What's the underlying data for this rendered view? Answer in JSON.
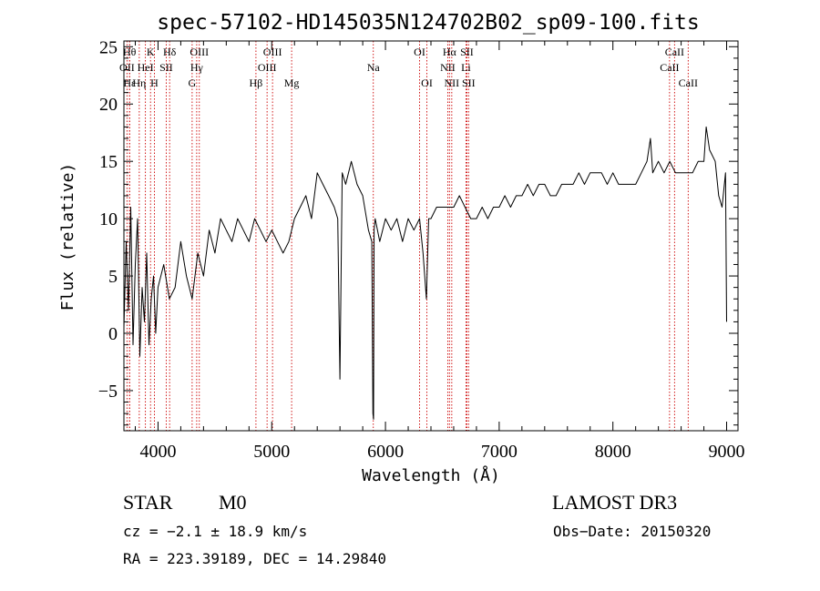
{
  "chart_data": {
    "type": "line",
    "title": "spec-57102-HD145035N124702B02_sp09-100.fits",
    "xlabel": "Wavelength (Å)",
    "ylabel": "Flux (relative)",
    "xlim": [
      3700,
      9100
    ],
    "ylim": [
      -8.5,
      25.5
    ],
    "xticks": [
      4000,
      5000,
      6000,
      7000,
      8000,
      9000
    ],
    "yticks": [
      -5,
      0,
      5,
      10,
      15,
      20,
      25
    ],
    "grid": false,
    "series": [
      {
        "x": [
          3700,
          3720,
          3740,
          3760,
          3780,
          3800,
          3820,
          3840,
          3860,
          3880,
          3900,
          3920,
          3940,
          3960,
          3980,
          4000,
          4050,
          4100,
          4150,
          4200,
          4250,
          4300,
          4350,
          4400,
          4450,
          4500,
          4550,
          4600,
          4650,
          4700,
          4750,
          4800,
          4850,
          4900,
          4950,
          5000,
          5050,
          5100,
          5150,
          5200,
          5250,
          5300,
          5350,
          5400,
          5450,
          5500,
          5550,
          5580,
          5600,
          5620,
          5650,
          5700,
          5750,
          5800,
          5850,
          5880,
          5890,
          5895,
          5900,
          5910,
          5950,
          6000,
          6050,
          6100,
          6150,
          6200,
          6250,
          6300,
          6330,
          6360,
          6380,
          6400,
          6450,
          6500,
          6550,
          6600,
          6650,
          6700,
          6750,
          6800,
          6850,
          6900,
          6950,
          7000,
          7050,
          7100,
          7150,
          7200,
          7250,
          7300,
          7350,
          7400,
          7450,
          7500,
          7550,
          7600,
          7650,
          7700,
          7750,
          7800,
          7850,
          7900,
          7950,
          8000,
          8050,
          8100,
          8150,
          8200,
          8250,
          8300,
          8330,
          8350,
          8400,
          8450,
          8500,
          8550,
          8600,
          8650,
          8700,
          8750,
          8800,
          8820,
          8850,
          8900,
          8930,
          8960,
          8990,
          9000
        ],
        "y": [
          0.5,
          8,
          2,
          11,
          -1,
          6,
          10,
          -2,
          4,
          1,
          7,
          -1,
          3,
          5,
          0,
          4,
          6,
          3,
          4,
          8,
          5,
          3,
          7,
          5,
          9,
          7,
          10,
          9,
          8,
          10,
          9,
          8,
          10,
          9,
          8,
          9,
          8,
          7,
          8,
          10,
          11,
          12,
          10,
          14,
          13,
          12,
          11,
          10,
          -4,
          14,
          13,
          15,
          13,
          12,
          9,
          8,
          -7,
          -7.5,
          9,
          10,
          8,
          10,
          9,
          10,
          8,
          10,
          9,
          10,
          7,
          3,
          10,
          10,
          11,
          11,
          11,
          11,
          12,
          11,
          10,
          10,
          11,
          10,
          11,
          11,
          12,
          11,
          12,
          12,
          13,
          12,
          13,
          13,
          12,
          12,
          13,
          13,
          13,
          14,
          13,
          14,
          14,
          14,
          13,
          14,
          13,
          13,
          13,
          13,
          14,
          15,
          17,
          14,
          15,
          14,
          15,
          14,
          14,
          14,
          14,
          15,
          15,
          18,
          16,
          15,
          12,
          11,
          14,
          1
        ]
      }
    ],
    "line_markers": [
      {
        "x": 3727,
        "label": "OII",
        "row": 1
      },
      {
        "x": 3750,
        "label": "Hθ",
        "row": 0
      },
      {
        "x": 3750,
        "label": "Hε",
        "row": 2
      },
      {
        "x": 3835,
        "label": "Hη",
        "row": 2
      },
      {
        "x": 3889,
        "label": "HeI",
        "row": 1
      },
      {
        "x": 3934,
        "label": "K",
        "row": 0
      },
      {
        "x": 3968,
        "label": "H",
        "row": 2
      },
      {
        "x": 4072,
        "label": "SII",
        "row": 1
      },
      {
        "x": 4102,
        "label": "Hδ",
        "row": 0
      },
      {
        "x": 4300,
        "label": "G",
        "row": 2
      },
      {
        "x": 4340,
        "label": "Hγ",
        "row": 1
      },
      {
        "x": 4363,
        "label": "OIII",
        "row": 0
      },
      {
        "x": 4861,
        "label": "Hβ",
        "row": 2
      },
      {
        "x": 4959,
        "label": "OIII",
        "row": 1
      },
      {
        "x": 5007,
        "label": "OIII",
        "row": 0
      },
      {
        "x": 5175,
        "label": "Mg",
        "row": 2
      },
      {
        "x": 5893,
        "label": "Na",
        "row": 1
      },
      {
        "x": 6300,
        "label": "OI",
        "row": 0
      },
      {
        "x": 6364,
        "label": "OI",
        "row": 2
      },
      {
        "x": 6548,
        "label": "NII",
        "row": 1
      },
      {
        "x": 6563,
        "label": "Hα",
        "row": 0
      },
      {
        "x": 6583,
        "label": "NII",
        "row": 2
      },
      {
        "x": 6708,
        "label": "Li",
        "row": 1
      },
      {
        "x": 6716,
        "label": "SII",
        "row": 0
      },
      {
        "x": 6731,
        "label": "SII",
        "row": 2
      },
      {
        "x": 8498,
        "label": "CaII",
        "row": 1
      },
      {
        "x": 8542,
        "label": "CaII",
        "row": 0
      },
      {
        "x": 8662,
        "label": "CaII",
        "row": 2
      }
    ]
  },
  "info": {
    "class": "STAR",
    "subclass": "M0",
    "survey": "LAMOST DR3",
    "cz": "cz = −2.1 ± 18.9 km/s",
    "obs_date": "Obs−Date: 20150320",
    "radec": "RA = 223.39189, DEC =  14.29840"
  },
  "colors": {
    "line": "#000000",
    "marker": "#cc0000",
    "axes": "#000000"
  }
}
